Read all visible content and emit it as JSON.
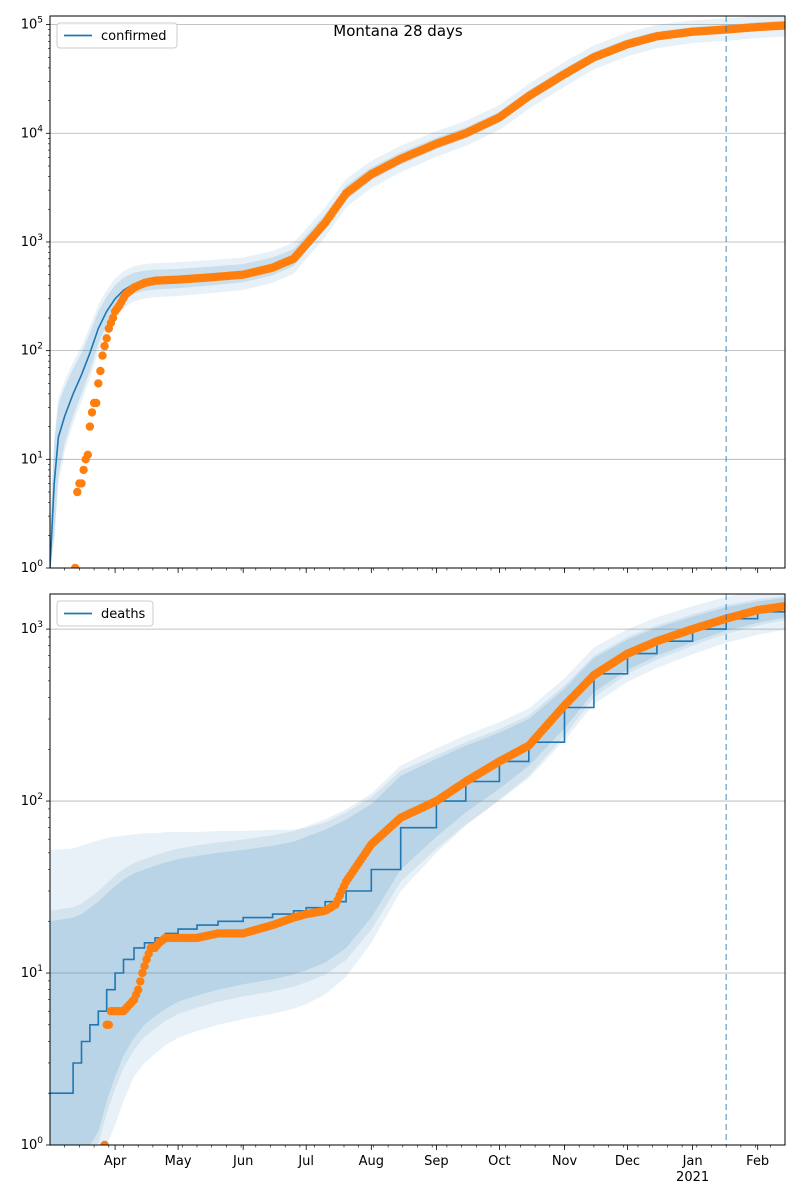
{
  "chart_data": [
    {
      "type": "line",
      "title": "Montana 28 days",
      "yscale": "log",
      "ylim": [
        1,
        120000
      ],
      "xlim": [
        "2020-03-01",
        "2021-02-14"
      ],
      "grid": "y",
      "legend": "top-left",
      "y_ticks": [
        {
          "v": 1,
          "base": "10",
          "exp": "0"
        },
        {
          "v": 10,
          "base": "10",
          "exp": "1"
        },
        {
          "v": 100,
          "base": "10",
          "exp": "2"
        },
        {
          "v": 1000,
          "base": "10",
          "exp": "3"
        },
        {
          "v": 10000,
          "base": "10",
          "exp": "4"
        },
        {
          "v": 100000,
          "base": "10",
          "exp": "5"
        }
      ],
      "vline": "2021-01-17",
      "series": [
        {
          "name": "confirmed",
          "kind": "model",
          "x": [
            "2020-03-01",
            "2020-03-03",
            "2020-03-05",
            "2020-03-08",
            "2020-03-12",
            "2020-03-16",
            "2020-03-20",
            "2020-03-24",
            "2020-03-28",
            "2020-04-01",
            "2020-04-05",
            "2020-04-10",
            "2020-04-15",
            "2020-04-20",
            "2020-05-01",
            "2020-05-15",
            "2020-06-01",
            "2020-06-15",
            "2020-06-25",
            "2020-07-01",
            "2020-07-10",
            "2020-07-20",
            "2020-08-01",
            "2020-08-15",
            "2020-09-01",
            "2020-09-15",
            "2020-10-01",
            "2020-10-15",
            "2020-11-01",
            "2020-11-15",
            "2020-12-01",
            "2020-12-15",
            "2021-01-01",
            "2021-01-17",
            "2021-02-01",
            "2021-02-14"
          ],
          "y": [
            1,
            6,
            16,
            25,
            40,
            60,
            95,
            160,
            230,
            300,
            360,
            410,
            430,
            440,
            450,
            470,
            500,
            580,
            700,
            950,
            1500,
            2800,
            4200,
            5800,
            8000,
            10000,
            14000,
            22000,
            35000,
            50000,
            66000,
            78000,
            86000,
            90000,
            95000,
            98000
          ],
          "band": {
            "lower": [
              1,
              2,
              7,
              14,
              25,
              40,
              65,
              115,
              175,
              235,
              290,
              335,
              355,
              365,
              375,
              395,
              425,
              495,
              600,
              820,
              1300,
              2450,
              3700,
              5150,
              7150,
              9000,
              12600,
              19700,
              31500,
              45500,
              60000,
              71500,
              79500,
              83500,
              88500,
              91500
            ],
            "upper": [
              2,
              14,
              32,
              46,
              68,
              95,
              145,
              230,
              315,
              400,
              470,
              520,
              545,
              555,
              565,
              590,
              625,
              720,
              860,
              1150,
              1800,
              3300,
              4850,
              6650,
              9100,
              11300,
              15800,
              24800,
              39500,
              56000,
              73500,
              86500,
              95000,
              99500,
              105000,
              108500
            ]
          }
        },
        {
          "name": "",
          "kind": "observed",
          "x": [
            "2020-03-13",
            "2020-03-14",
            "2020-03-15",
            "2020-03-16",
            "2020-03-17",
            "2020-03-18",
            "2020-03-19",
            "2020-03-20",
            "2020-03-21",
            "2020-03-22",
            "2020-03-23",
            "2020-03-24",
            "2020-03-25",
            "2020-03-26",
            "2020-03-27",
            "2020-03-28",
            "2020-03-29",
            "2020-03-30",
            "2020-03-31",
            "2020-04-01",
            "2020-04-03",
            "2020-04-06",
            "2020-04-10",
            "2020-04-15",
            "2020-04-20",
            "2020-05-01",
            "2020-05-15",
            "2020-06-01",
            "2020-06-15",
            "2020-06-25",
            "2020-07-01",
            "2020-07-10",
            "2020-07-20",
            "2020-08-01",
            "2020-08-15",
            "2020-09-01",
            "2020-09-15",
            "2020-10-01",
            "2020-10-15",
            "2020-11-01",
            "2020-11-15",
            "2020-12-01",
            "2020-12-15",
            "2021-01-01",
            "2021-01-17",
            "2021-02-01",
            "2021-02-14"
          ],
          "y": [
            1,
            5,
            6,
            6,
            8,
            10,
            11,
            20,
            27,
            33,
            33,
            50,
            65,
            90,
            110,
            130,
            160,
            180,
            200,
            230,
            260,
            330,
            380,
            420,
            440,
            450,
            470,
            500,
            580,
            700,
            950,
            1500,
            2800,
            4200,
            5800,
            8000,
            10000,
            14000,
            22000,
            35000,
            50000,
            66000,
            78000,
            86000,
            90000,
            95000,
            98000
          ]
        }
      ]
    },
    {
      "type": "line",
      "title": "",
      "yscale": "log",
      "ylim": [
        1,
        1600
      ],
      "xlim": [
        "2020-03-01",
        "2021-02-14"
      ],
      "grid": "y",
      "legend": "top-left",
      "y_ticks": [
        {
          "v": 1,
          "base": "10",
          "exp": "0"
        },
        {
          "v": 10,
          "base": "10",
          "exp": "1"
        },
        {
          "v": 100,
          "base": "10",
          "exp": "2"
        },
        {
          "v": 1000,
          "base": "10",
          "exp": "3"
        }
      ],
      "vline": "2021-01-17",
      "series": [
        {
          "name": "deaths",
          "kind": "model",
          "step": true,
          "x": [
            "2020-03-01",
            "2020-03-12",
            "2020-03-16",
            "2020-03-20",
            "2020-03-24",
            "2020-03-28",
            "2020-04-01",
            "2020-04-05",
            "2020-04-10",
            "2020-04-15",
            "2020-04-20",
            "2020-04-25",
            "2020-05-01",
            "2020-05-10",
            "2020-05-20",
            "2020-06-01",
            "2020-06-15",
            "2020-06-25",
            "2020-07-01",
            "2020-07-10",
            "2020-07-20",
            "2020-08-01",
            "2020-08-15",
            "2020-09-01",
            "2020-09-15",
            "2020-10-01",
            "2020-10-15",
            "2020-11-01",
            "2020-11-15",
            "2020-12-01",
            "2020-12-15",
            "2021-01-01",
            "2021-01-17",
            "2021-02-01",
            "2021-02-14"
          ],
          "y": [
            2,
            3,
            4,
            5,
            6,
            8,
            10,
            12,
            14,
            15,
            16,
            17,
            18,
            19,
            20,
            21,
            22,
            23,
            24,
            26,
            30,
            40,
            70,
            100,
            130,
            170,
            220,
            350,
            550,
            720,
            850,
            1000,
            1150,
            1260,
            1330
          ],
          "band": {
            "lower": [
              1,
              1,
              1,
              1,
              1.2,
              1.8,
              2.5,
              3.3,
              4.2,
              5,
              5.6,
              6.2,
              6.8,
              7.4,
              8,
              8.6,
              9.2,
              9.8,
              10.4,
              11.5,
              14,
              21,
              40,
              62,
              86,
              118,
              160,
              265,
              430,
              580,
              700,
              840,
              980,
              1090,
              1170
            ],
            "upper": [
              20,
              21,
              22,
              24,
              26,
              29,
              32,
              35,
              38,
              40,
              42,
              44,
              46,
              48,
              50,
              52,
              55,
              58,
              62,
              68,
              78,
              96,
              140,
              176,
              210,
              250,
              300,
              450,
              680,
              870,
              1020,
              1180,
              1340,
              1450,
              1520
            ]
          },
          "band_outer": {
            "lower": [
              1,
              1,
              1,
              1,
              1,
              1,
              1.3,
              1.8,
              2.5,
              3,
              3.4,
              3.8,
              4.2,
              4.6,
              5,
              5.4,
              5.8,
              6.2,
              6.6,
              7.5,
              9.5,
              15,
              30,
              50,
              72,
              102,
              140,
              240,
              400,
              550,
              665,
              800,
              940,
              1050,
              1130
            ],
            "upper": [
              52,
              53,
              55,
              57,
              59,
              61,
              62,
              63,
              64,
              65,
              65,
              66,
              66,
              66,
              67,
              67,
              68,
              68,
              70,
              75,
              86,
              105,
              150,
              185,
              220,
              262,
              315,
              470,
              700,
              900,
              1050,
              1220,
              1380,
              1490,
              1560
            ]
          }
        },
        {
          "name": "",
          "kind": "observed",
          "x": [
            "2020-03-27",
            "2020-03-28",
            "2020-03-29",
            "2020-03-30",
            "2020-04-01",
            "2020-04-05",
            "2020-04-10",
            "2020-04-12",
            "2020-04-14",
            "2020-04-16",
            "2020-04-18",
            "2020-04-20",
            "2020-04-22",
            "2020-04-25",
            "2020-05-01",
            "2020-05-10",
            "2020-05-20",
            "2020-06-01",
            "2020-06-15",
            "2020-06-25",
            "2020-07-01",
            "2020-07-10",
            "2020-07-15",
            "2020-07-20",
            "2020-08-01",
            "2020-08-15",
            "2020-09-01",
            "2020-09-15",
            "2020-10-01",
            "2020-10-15",
            "2020-11-01",
            "2020-11-15",
            "2020-12-01",
            "2020-12-15",
            "2021-01-01",
            "2021-01-17",
            "2021-02-01",
            "2021-02-14"
          ],
          "y": [
            1,
            5,
            5,
            6,
            6,
            6,
            7,
            8,
            10,
            12,
            14,
            14,
            15,
            16,
            16,
            16,
            17,
            17,
            19,
            21,
            22,
            23,
            25,
            34,
            56,
            80,
            100,
            130,
            170,
            210,
            360,
            540,
            720,
            850,
            1000,
            1150,
            1290,
            1360
          ]
        }
      ]
    }
  ],
  "x_ticks": [
    {
      "d": "2020-04-01",
      "label": "Apr"
    },
    {
      "d": "2020-05-01",
      "label": "May"
    },
    {
      "d": "2020-06-01",
      "label": "Jun"
    },
    {
      "d": "2020-07-01",
      "label": "Jul"
    },
    {
      "d": "2020-08-01",
      "label": "Aug"
    },
    {
      "d": "2020-09-01",
      "label": "Sep"
    },
    {
      "d": "2020-10-01",
      "label": "Oct"
    },
    {
      "d": "2020-11-01",
      "label": "Nov"
    },
    {
      "d": "2020-12-01",
      "label": "Dec"
    },
    {
      "d": "2021-01-01",
      "label": "Jan"
    },
    {
      "d": "2021-02-01",
      "label": "Feb"
    }
  ],
  "x_year_label": "2021",
  "colors": {
    "model": "#1f77b4",
    "observed": "#ff7f0e",
    "band": "#1f77b4",
    "grid": "#b0b0b0",
    "vline": "#1f77b4"
  }
}
